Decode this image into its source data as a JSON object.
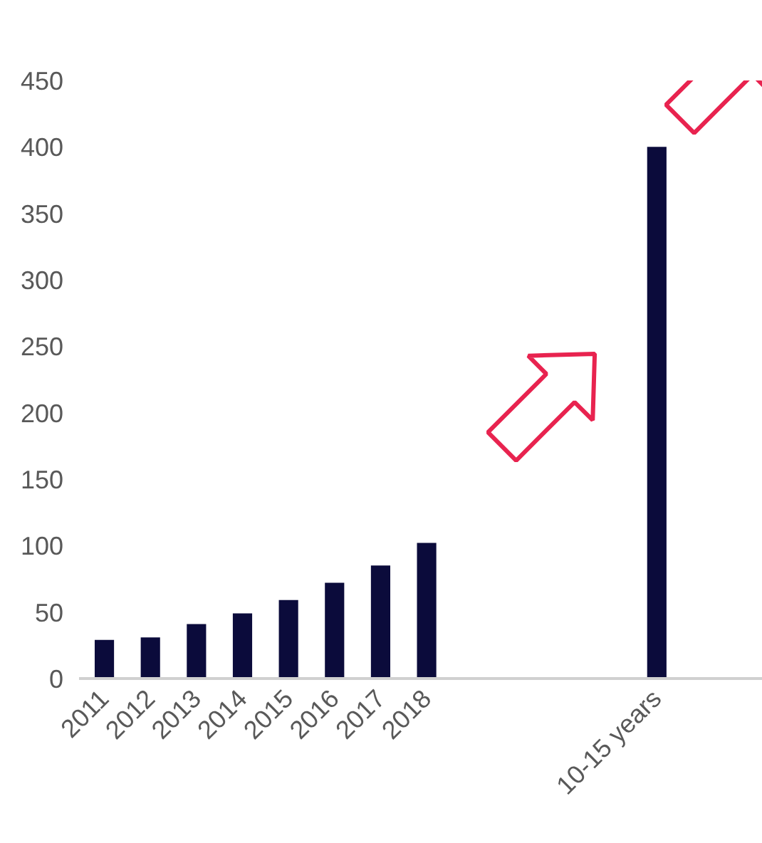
{
  "chart_data": {
    "type": "bar",
    "categories": [
      "2011",
      "2012",
      "2013",
      "2014",
      "2015",
      "2016",
      "2017",
      "2018",
      null,
      null,
      null,
      null,
      "10-15 years"
    ],
    "values": [
      29,
      31,
      41,
      49,
      59,
      72,
      85,
      102,
      null,
      null,
      null,
      null,
      400
    ],
    "color": "#0b0b3b",
    "ylim": [
      0,
      450
    ],
    "yticks": [
      0,
      50,
      100,
      150,
      200,
      250,
      300,
      350,
      400,
      450
    ],
    "grid": false
  }
}
